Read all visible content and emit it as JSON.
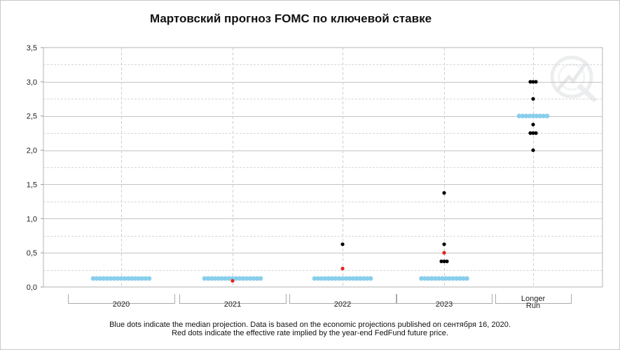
{
  "chart_data": {
    "type": "scatter",
    "title": "Мартовский прогноз FOMC по ключевой ставке",
    "categories": [
      "2020",
      "2021",
      "2022",
      "2023",
      "Longer Run"
    ],
    "category_labels": [
      [
        "2020"
      ],
      [
        "2021"
      ],
      [
        "2022"
      ],
      [
        "2023"
      ],
      [
        "Longer",
        "Run"
      ]
    ],
    "ylim": [
      0,
      3.5
    ],
    "y_ticks": [
      "0,0",
      "0,5",
      "1,0",
      "1,5",
      "2,0",
      "2,5",
      "3,0",
      "3,5"
    ],
    "y_tick_values": [
      0,
      0.5,
      1,
      1.5,
      2,
      2.5,
      3,
      3.5
    ],
    "grid": true,
    "series": [
      {
        "role": "median",
        "color": "#87ceeb",
        "points": [
          {
            "category": "2020",
            "value": 0.125,
            "count": 17
          },
          {
            "category": "2021",
            "value": 0.125,
            "count": 17
          },
          {
            "category": "2022",
            "value": 0.125,
            "count": 17
          },
          {
            "category": "2023",
            "value": 0.125,
            "count": 14
          },
          {
            "category": "Longer Run",
            "value": 2.5,
            "count": 9
          }
        ]
      },
      {
        "role": "participant",
        "color": "#000000",
        "points": [
          {
            "category": "2022",
            "value": 0.625,
            "count": 1
          },
          {
            "category": "2023",
            "value": 1.375,
            "count": 1
          },
          {
            "category": "2023",
            "value": 0.625,
            "count": 1
          },
          {
            "category": "2023",
            "value": 0.375,
            "count": 3
          },
          {
            "category": "Longer Run",
            "value": 3.0,
            "count": 3
          },
          {
            "category": "Longer Run",
            "value": 2.75,
            "count": 1
          },
          {
            "category": "Longer Run",
            "value": 2.375,
            "count": 1
          },
          {
            "category": "Longer Run",
            "value": 2.25,
            "count": 3
          },
          {
            "category": "Longer Run",
            "value": 2.0,
            "count": 1
          }
        ]
      },
      {
        "role": "market-implied",
        "color": "#e8211c",
        "points": [
          {
            "category": "2021",
            "value": 0.09
          },
          {
            "category": "2022",
            "value": 0.27
          },
          {
            "category": "2023",
            "value": 0.5
          }
        ]
      }
    ]
  },
  "footnotes": {
    "line1": "Blue dots indicate the median projection. Data is based on the economic projections published on сентября 16, 2020.",
    "line2": "Red dots indicate the effective rate implied by the year-end FedFund future price."
  }
}
